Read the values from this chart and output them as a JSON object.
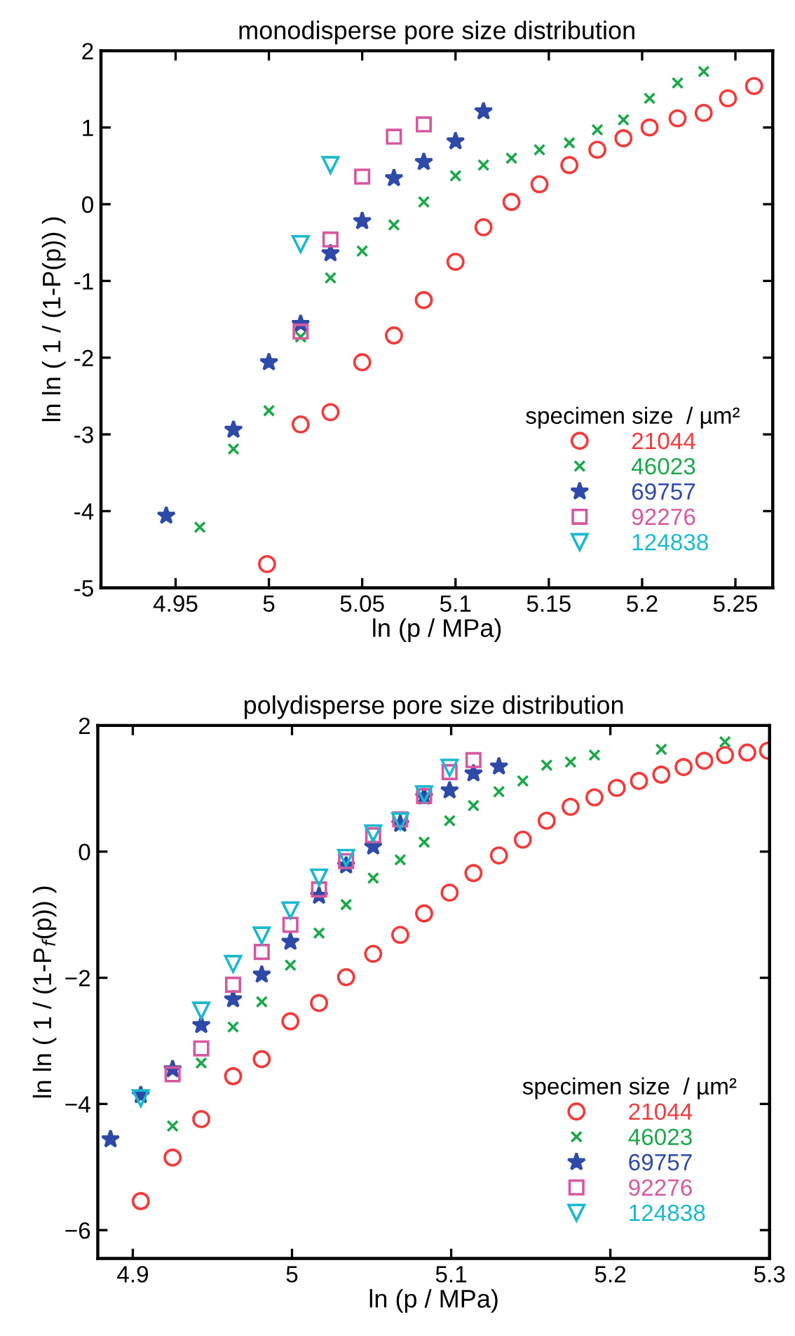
{
  "chart_data": [
    {
      "type": "scatter",
      "title": "monodisperse pore size distribution",
      "xlabel": "ln (p / MPa)",
      "ylabel": "ln ln ( 1 / (1-P(p)) )",
      "legend_title": "specimen size  / µm²",
      "legend": "bottom right",
      "grid": false,
      "xlim": [
        4.91,
        5.27
      ],
      "ylim": [
        -5,
        2
      ],
      "xticks": [
        4.95,
        5,
        5.05,
        5.1,
        5.15,
        5.2,
        5.25
      ],
      "yticks": [
        -5,
        -4,
        -3,
        -2,
        -1,
        0,
        1,
        2
      ],
      "series": [
        {
          "name": "21044",
          "color": "#f23a3a",
          "marker": "circle",
          "x": [
            4.999,
            5.017,
            5.033,
            5.05,
            5.067,
            5.083,
            5.1,
            5.115,
            5.13,
            5.145,
            5.161,
            5.176,
            5.19,
            5.204,
            5.219,
            5.233,
            5.246,
            5.26
          ],
          "values": [
            -4.69,
            -2.87,
            -2.71,
            -2.06,
            -1.71,
            -1.25,
            -0.75,
            -0.3,
            0.03,
            0.26,
            0.51,
            0.71,
            0.86,
            1.0,
            1.12,
            1.19,
            1.38,
            1.54
          ]
        },
        {
          "name": "46023",
          "color": "#1aa84a",
          "marker": "cross",
          "x": [
            4.963,
            4.981,
            5.0,
            5.017,
            5.033,
            5.05,
            5.067,
            5.083,
            5.1,
            5.115,
            5.13,
            5.145,
            5.161,
            5.176,
            5.19,
            5.204,
            5.219,
            5.233
          ],
          "values": [
            -4.21,
            -3.19,
            -2.69,
            -1.73,
            -0.96,
            -0.61,
            -0.27,
            0.03,
            0.37,
            0.51,
            0.6,
            0.71,
            0.8,
            0.97,
            1.1,
            1.38,
            1.58,
            1.73
          ]
        },
        {
          "name": "69757",
          "color": "#2e4aa8",
          "marker": "star",
          "x": [
            4.945,
            4.981,
            5.0,
            5.017,
            5.033,
            5.05,
            5.067,
            5.083,
            5.1,
            5.115
          ],
          "values": [
            -4.06,
            -2.94,
            -2.06,
            -1.56,
            -0.64,
            -0.22,
            0.34,
            0.55,
            0.82,
            1.21
          ]
        },
        {
          "name": "92276",
          "color": "#d6589e",
          "marker": "square",
          "x": [
            5.017,
            5.033,
            5.05,
            5.067,
            5.083
          ],
          "values": [
            -1.66,
            -0.46,
            0.36,
            0.88,
            1.04
          ]
        },
        {
          "name": "124838",
          "color": "#1ab8d0",
          "marker": "triangle",
          "x": [
            5.017,
            5.033
          ],
          "values": [
            -0.52,
            0.51
          ]
        }
      ]
    },
    {
      "type": "scatter",
      "title": "polydisperse pore size distribution",
      "xlabel": "ln (p / MPa)",
      "ylabel": "ln ln ( 1 / (1-P$_{f}$(p)) )",
      "legend_title": "specimen size  / µm²",
      "legend": "bottom right",
      "grid": false,
      "xlim": [
        4.878,
        5.3
      ],
      "ylim": [
        -6.45,
        2
      ],
      "xticks": [
        4.9,
        5,
        5.1,
        5.2,
        5.3
      ],
      "yticks": [
        {
          "value": -6,
          "label": "−6"
        },
        {
          "value": -4,
          "label": "−4"
        },
        {
          "value": -2,
          "label": "−2"
        },
        0,
        2
      ],
      "series": [
        {
          "name": "21044",
          "color": "#f23a3a",
          "marker": "circle",
          "x": [
            4.905,
            4.925,
            4.943,
            4.963,
            4.981,
            4.999,
            5.017,
            5.034,
            5.051,
            5.068,
            5.083,
            5.099,
            5.114,
            5.13,
            5.145,
            5.16,
            5.175,
            5.19,
            5.204,
            5.218,
            5.232,
            5.246,
            5.259,
            5.272,
            5.286,
            5.299
          ],
          "values": [
            -5.54,
            -4.85,
            -4.24,
            -3.56,
            -3.29,
            -2.69,
            -2.4,
            -1.99,
            -1.62,
            -1.32,
            -0.98,
            -0.65,
            -0.34,
            -0.06,
            0.19,
            0.49,
            0.71,
            0.86,
            1.01,
            1.12,
            1.22,
            1.34,
            1.44,
            1.53,
            1.57,
            1.6
          ]
        },
        {
          "name": "46023",
          "color": "#1aa84a",
          "marker": "cross",
          "x": [
            4.925,
            4.943,
            4.963,
            4.981,
            4.999,
            5.017,
            5.034,
            5.051,
            5.068,
            5.083,
            5.099,
            5.114,
            5.13,
            5.145,
            5.16,
            5.175,
            5.19,
            5.232,
            5.272
          ],
          "values": [
            -4.35,
            -3.35,
            -2.78,
            -2.38,
            -1.8,
            -1.29,
            -0.84,
            -0.42,
            -0.13,
            0.15,
            0.49,
            0.73,
            0.95,
            1.12,
            1.37,
            1.42,
            1.53,
            1.62,
            1.74
          ]
        },
        {
          "name": "69757",
          "color": "#2e4aa8",
          "marker": "star",
          "x": [
            4.886,
            4.905,
            4.925,
            4.943,
            4.963,
            4.981,
            4.999,
            5.017,
            5.034,
            5.051,
            5.068,
            5.083,
            5.099,
            5.114,
            5.13
          ],
          "values": [
            -4.56,
            -3.86,
            -3.45,
            -2.75,
            -2.34,
            -1.95,
            -1.43,
            -0.7,
            -0.22,
            0.08,
            0.44,
            0.87,
            0.97,
            1.24,
            1.35
          ]
        },
        {
          "name": "92276",
          "color": "#d6589e",
          "marker": "square",
          "x": [
            4.925,
            4.943,
            4.963,
            4.981,
            4.999,
            5.017,
            5.034,
            5.051,
            5.068,
            5.083,
            5.099,
            5.114
          ],
          "values": [
            -3.53,
            -3.12,
            -2.11,
            -1.59,
            -1.16,
            -0.6,
            -0.15,
            0.26,
            0.51,
            0.88,
            1.26,
            1.45
          ]
        },
        {
          "name": "124838",
          "color": "#1ab8d0",
          "marker": "triangle",
          "x": [
            4.905,
            4.943,
            4.963,
            4.981,
            4.999,
            5.017,
            5.034,
            5.051,
            5.068,
            5.083,
            5.099
          ],
          "values": [
            -3.91,
            -2.52,
            -1.78,
            -1.33,
            -0.93,
            -0.41,
            -0.1,
            0.29,
            0.48,
            0.91,
            1.33
          ]
        }
      ]
    }
  ]
}
